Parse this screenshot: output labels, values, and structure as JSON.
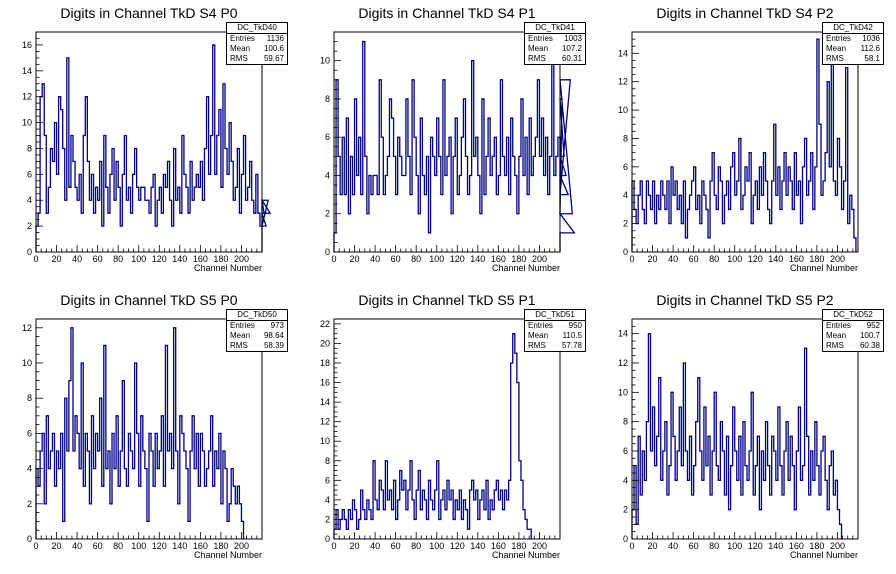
{
  "chart_data": [
    {
      "type": "histogram",
      "title": "Digits in Channel TkD S4 P0",
      "stats": {
        "name": "DC_TkD40",
        "entries": "1136",
        "mean": "100.6",
        "rms": "59.67"
      },
      "xlabel": "Channel Number",
      "xlim": [
        0,
        220
      ],
      "ylim": [
        0,
        17
      ],
      "xticks": [
        "0",
        "20",
        "40",
        "60",
        "80",
        "100",
        "120",
        "140",
        "160",
        "180",
        "200"
      ],
      "yticks": [
        "0",
        "2",
        "4",
        "6",
        "8",
        "10",
        "12",
        "14",
        "16"
      ],
      "values": [
        2,
        3,
        12,
        13,
        9,
        3,
        5,
        8,
        7,
        10,
        6,
        12,
        11,
        8,
        4,
        15,
        5,
        9,
        7,
        5,
        4,
        6,
        3,
        9,
        12,
        7,
        4,
        6,
        3,
        5,
        4,
        7,
        2,
        9,
        5,
        3,
        6,
        8,
        4,
        7,
        5,
        2,
        6,
        9,
        4,
        5,
        3,
        6,
        8,
        5,
        4,
        5,
        5,
        4,
        4,
        3,
        5,
        6,
        2,
        4,
        5,
        3,
        6,
        5,
        7,
        4,
        2,
        8,
        4,
        5,
        3,
        9,
        6,
        5,
        3,
        7,
        4,
        5,
        6,
        5,
        7,
        4,
        8,
        12,
        6,
        9,
        16,
        6,
        9,
        11,
        5,
        13,
        8,
        6,
        10,
        7,
        4,
        5,
        8,
        3,
        6,
        9,
        4,
        5,
        7,
        4,
        3,
        6,
        3,
        2,
        4,
        3,
        2,
        4,
        3
      ]
    },
    {
      "type": "histogram",
      "title": "Digits in Channel TkD S4 P1",
      "stats": {
        "name": "DC_TkD41",
        "entries": "1003",
        "mean": "107.2",
        "rms": "60.31"
      },
      "xlabel": "Channel Number",
      "xlim": [
        0,
        220
      ],
      "ylim": [
        0,
        11.5
      ],
      "xticks": [
        "0",
        "20",
        "40",
        "60",
        "80",
        "100",
        "120",
        "140",
        "160",
        "180",
        "200"
      ],
      "yticks": [
        "0",
        "2",
        "4",
        "6",
        "8",
        "10"
      ],
      "values": [
        1,
        9,
        5,
        3,
        6,
        3,
        7,
        2,
        5,
        3,
        8,
        4,
        6,
        3,
        11,
        5,
        2,
        4,
        3,
        4,
        4,
        3,
        9,
        6,
        3,
        4,
        5,
        8,
        7,
        5,
        3,
        6,
        5,
        4,
        4,
        8,
        5,
        3,
        9,
        6,
        4,
        2,
        7,
        4,
        3,
        5,
        1,
        6,
        5,
        4,
        7,
        5,
        3,
        9,
        4,
        5,
        6,
        2,
        5,
        7,
        3,
        4,
        6,
        8,
        5,
        3,
        4,
        10,
        5,
        6,
        4,
        2,
        8,
        3,
        5,
        7,
        4,
        5,
        6,
        3,
        4,
        9,
        5,
        4,
        6,
        3,
        7,
        5,
        4,
        2,
        5,
        8,
        4,
        6,
        3,
        7,
        4,
        5,
        6,
        9,
        5,
        7,
        4,
        6,
        3,
        5,
        10,
        4,
        5,
        6,
        2,
        8,
        5,
        4,
        3,
        9,
        2,
        1
      ]
    },
    {
      "type": "histogram",
      "title": "Digits in Channel TkD S4 P2",
      "stats": {
        "name": "DC_TkD42",
        "entries": "1036",
        "mean": "112.6",
        "rms": "58.1"
      },
      "xlabel": "Channel Number",
      "xlim": [
        0,
        220
      ],
      "ylim": [
        0,
        15.5
      ],
      "xticks": [
        "0",
        "20",
        "40",
        "60",
        "80",
        "100",
        "120",
        "140",
        "160",
        "180",
        "200"
      ],
      "yticks": [
        "0",
        "2",
        "4",
        "6",
        "8",
        "10",
        "12",
        "14"
      ],
      "values": [
        5,
        3,
        2,
        4,
        5,
        3,
        2,
        5,
        4,
        3,
        5,
        2,
        4,
        3,
        5,
        4,
        3,
        5,
        2,
        6,
        4,
        5,
        3,
        4,
        2,
        5,
        1,
        3,
        4,
        5,
        6,
        3,
        4,
        2,
        5,
        4,
        3,
        1,
        5,
        7,
        4,
        3,
        6,
        5,
        2,
        4,
        5,
        3,
        6,
        7,
        4,
        5,
        8,
        3,
        4,
        6,
        5,
        7,
        2,
        4,
        5,
        3,
        6,
        4,
        7,
        5,
        3,
        2,
        5,
        9,
        4,
        6,
        3,
        5,
        7,
        4,
        6,
        5,
        3,
        7,
        4,
        5,
        2,
        6,
        8,
        4,
        5,
        7,
        3,
        6,
        15,
        9,
        4,
        5,
        7,
        12,
        6,
        15,
        5,
        4,
        8,
        6,
        3,
        5,
        13,
        2,
        4,
        3,
        1
      ]
    },
    {
      "type": "histogram",
      "title": "Digits in Channel TkD S5 P0",
      "stats": {
        "name": "DC_TkD50",
        "entries": "973",
        "mean": "98.64",
        "rms": "58.39"
      },
      "xlabel": "Channel Number",
      "xlim": [
        0,
        220
      ],
      "ylim": [
        0,
        12.5
      ],
      "xticks": [
        "0",
        "20",
        "40",
        "60",
        "80",
        "100",
        "120",
        "140",
        "160",
        "180",
        "200"
      ],
      "yticks": [
        "0",
        "2",
        "4",
        "6",
        "8",
        "10",
        "12"
      ],
      "values": [
        4,
        3,
        5,
        6,
        2,
        7,
        4,
        5,
        6,
        3,
        5,
        4,
        6,
        1,
        8,
        5,
        9,
        12,
        5,
        7,
        6,
        4,
        10,
        3,
        6,
        5,
        2,
        7,
        4,
        6,
        5,
        8,
        3,
        11,
        4,
        5,
        2,
        6,
        4,
        7,
        3,
        5,
        9,
        4,
        3,
        6,
        5,
        4,
        10,
        6,
        3,
        7,
        5,
        4,
        1,
        6,
        5,
        3,
        6,
        4,
        5,
        7,
        3,
        11,
        5,
        6,
        4,
        12,
        5,
        2,
        7,
        6,
        5,
        4,
        1,
        5,
        7,
        4,
        6,
        3,
        6,
        5,
        3,
        4,
        5,
        7,
        3,
        5,
        4,
        6,
        2,
        5,
        4,
        1,
        2,
        4,
        3,
        2,
        3,
        2,
        1
      ]
    },
    {
      "type": "histogram",
      "title": "Digits in Channel TkD S5 P1",
      "stats": {
        "name": "DC_TkD51",
        "entries": "950",
        "mean": "110.5",
        "rms": "57.78"
      },
      "xlabel": "Channel Number",
      "xlim": [
        0,
        220
      ],
      "ylim": [
        0,
        22.5
      ],
      "xticks": [
        "0",
        "20",
        "40",
        "60",
        "80",
        "100",
        "120",
        "140",
        "160",
        "180",
        "200"
      ],
      "yticks": [
        "0",
        "2",
        "4",
        "6",
        "8",
        "10",
        "12",
        "14",
        "16",
        "18",
        "20",
        "22"
      ],
      "values": [
        1,
        3,
        1,
        2,
        3,
        2,
        1,
        3,
        2,
        4,
        3,
        1,
        2,
        5,
        3,
        2,
        4,
        3,
        2,
        8,
        4,
        3,
        6,
        5,
        3,
        8,
        4,
        5,
        3,
        6,
        2,
        4,
        7,
        5,
        6,
        3,
        5,
        8,
        4,
        2,
        5,
        7,
        3,
        5,
        4,
        2,
        6,
        4,
        3,
        5,
        8,
        2,
        4,
        5,
        3,
        6,
        4,
        5,
        2,
        4,
        3,
        5,
        2,
        4,
        3,
        1,
        5,
        6,
        4,
        5,
        2,
        4,
        5,
        3,
        6,
        2,
        4,
        3,
        5,
        6,
        4,
        5,
        3,
        5,
        4,
        6,
        18,
        21,
        19,
        16,
        8,
        6,
        3,
        2,
        1,
        1
      ]
    },
    {
      "type": "histogram",
      "title": "Digits in Channel TkD S5 P2",
      "stats": {
        "name": "DC_TkD52",
        "entries": "952",
        "mean": "100.7",
        "rms": "60.38"
      },
      "xlabel": "Channel Number",
      "xlim": [
        0,
        220
      ],
      "ylim": [
        0,
        15
      ],
      "xticks": [
        "0",
        "20",
        "40",
        "60",
        "80",
        "100",
        "120",
        "140",
        "160",
        "180",
        "200"
      ],
      "yticks": [
        "0",
        "2",
        "4",
        "6",
        "8",
        "10",
        "12",
        "14"
      ],
      "values": [
        2,
        5,
        1,
        7,
        3,
        6,
        4,
        8,
        14,
        6,
        9,
        5,
        7,
        11,
        4,
        6,
        8,
        3,
        5,
        10,
        7,
        4,
        6,
        9,
        5,
        12,
        6,
        4,
        7,
        3,
        5,
        8,
        11,
        6,
        4,
        9,
        5,
        7,
        3,
        6,
        10,
        5,
        4,
        8,
        6,
        3,
        7,
        2,
        5,
        9,
        6,
        4,
        7,
        3,
        8,
        5,
        4,
        6,
        10,
        3,
        5,
        7,
        2,
        6,
        4,
        8,
        5,
        3,
        7,
        6,
        4,
        9,
        5,
        3,
        6,
        8,
        4,
        7,
        5,
        2,
        6,
        9,
        4,
        5,
        13,
        7,
        3,
        6,
        4,
        8,
        5,
        3,
        6,
        7,
        4,
        2,
        5,
        6,
        3,
        4,
        2,
        1
      ]
    }
  ]
}
